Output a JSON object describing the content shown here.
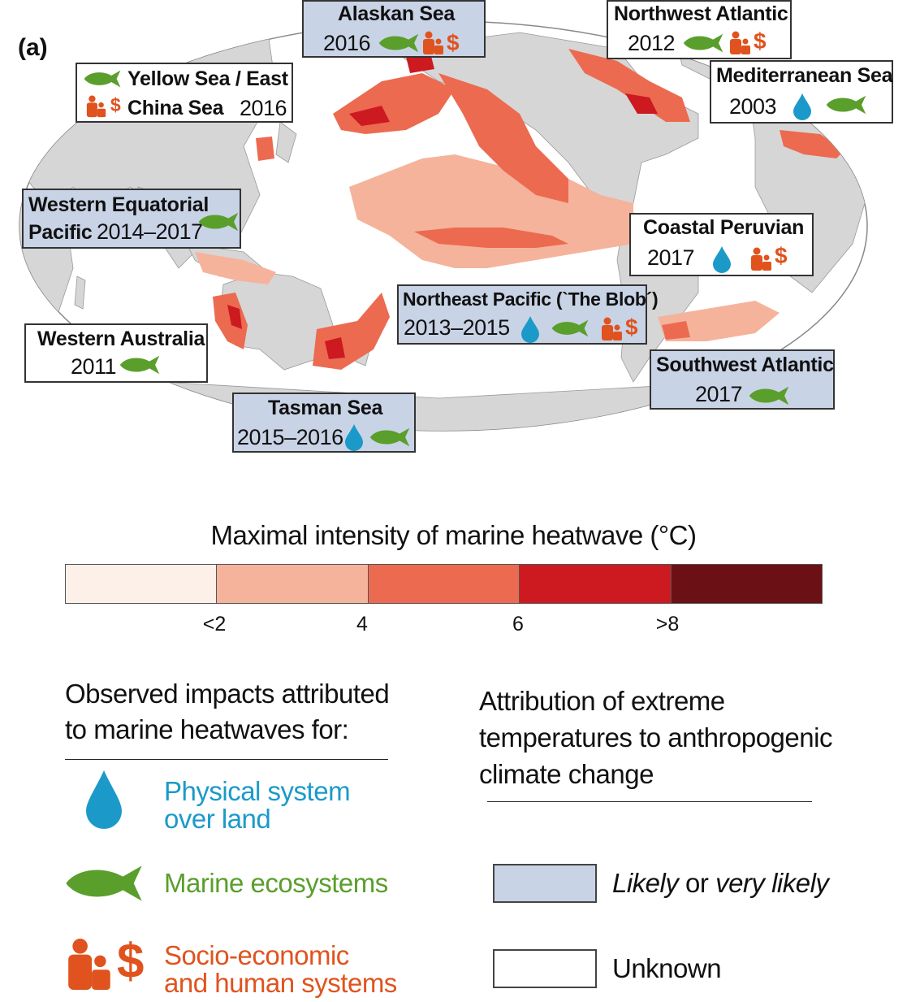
{
  "panel_label": "(a)",
  "regions": [
    {
      "name": "Alaskan Sea",
      "year": "2016",
      "attribution": "likely",
      "impacts": [
        "fish",
        "socio"
      ]
    },
    {
      "name": "Northwest Atlantic",
      "year": "2012",
      "attribution": "unknown",
      "impacts": [
        "fish",
        "socio"
      ]
    },
    {
      "name": "Yellow Sea / East",
      "name2": "China Sea",
      "year": "2016",
      "attribution": "unknown",
      "impacts": [
        "fish",
        "socio"
      ]
    },
    {
      "name": "Mediterranean Sea",
      "year": "2003",
      "attribution": "unknown",
      "impacts": [
        "drop",
        "fish"
      ]
    },
    {
      "name": "Western Equatorial",
      "name2": "Pacific",
      "year": "2014–2017",
      "attribution": "likely",
      "impacts": [
        "fish"
      ]
    },
    {
      "name": "Coastal Peruvian",
      "year": "2017",
      "attribution": "unknown",
      "impacts": [
        "drop",
        "socio"
      ]
    },
    {
      "name": "Northeast Pacific (`The Blob´)",
      "year": "2013–2015",
      "attribution": "likely",
      "impacts": [
        "drop",
        "fish",
        "socio"
      ]
    },
    {
      "name": "Western Australia",
      "year": "2011",
      "attribution": "unknown",
      "impacts": [
        "fish"
      ]
    },
    {
      "name": "Southwest Atlantic",
      "year": "2017",
      "attribution": "likely",
      "impacts": [
        "fish"
      ]
    },
    {
      "name": "Tasman Sea",
      "year": "2015–2016",
      "attribution": "likely",
      "impacts": [
        "drop",
        "fish"
      ]
    }
  ],
  "colorbar": {
    "title": "Maximal intensity of marine heatwave (°C)",
    "colors": [
      "#fdf0e8",
      "#f5b39c",
      "#ec6a50",
      "#cc1a20",
      "#6b1015"
    ],
    "tick_labels": [
      "<2",
      "4",
      "6",
      ">8"
    ]
  },
  "legend": {
    "impacts_heading_line1": "Observed impacts attributed",
    "impacts_heading_line2": "to marine heatwaves for:",
    "physical_line1": "Physical system",
    "physical_line2": "over land",
    "marine": "Marine ecosystems",
    "socio_line1": "Socio-economic",
    "socio_line2": "and human systems",
    "attribution_heading_line1": "Attribution of extreme",
    "attribution_heading_line2": "temperatures to anthropogenic",
    "attribution_heading_line3": "climate change",
    "likely_word": "Likely",
    "or_word": " or ",
    "very_likely_word": "very likely",
    "unknown": "Unknown"
  },
  "colors": {
    "land": "#d6d6d6",
    "ocean": "#ffffff",
    "physical": "#1b9ac9",
    "marine": "#5a9e2c",
    "socio": "#e0531e",
    "likely_fill": "#c9d3e6"
  }
}
